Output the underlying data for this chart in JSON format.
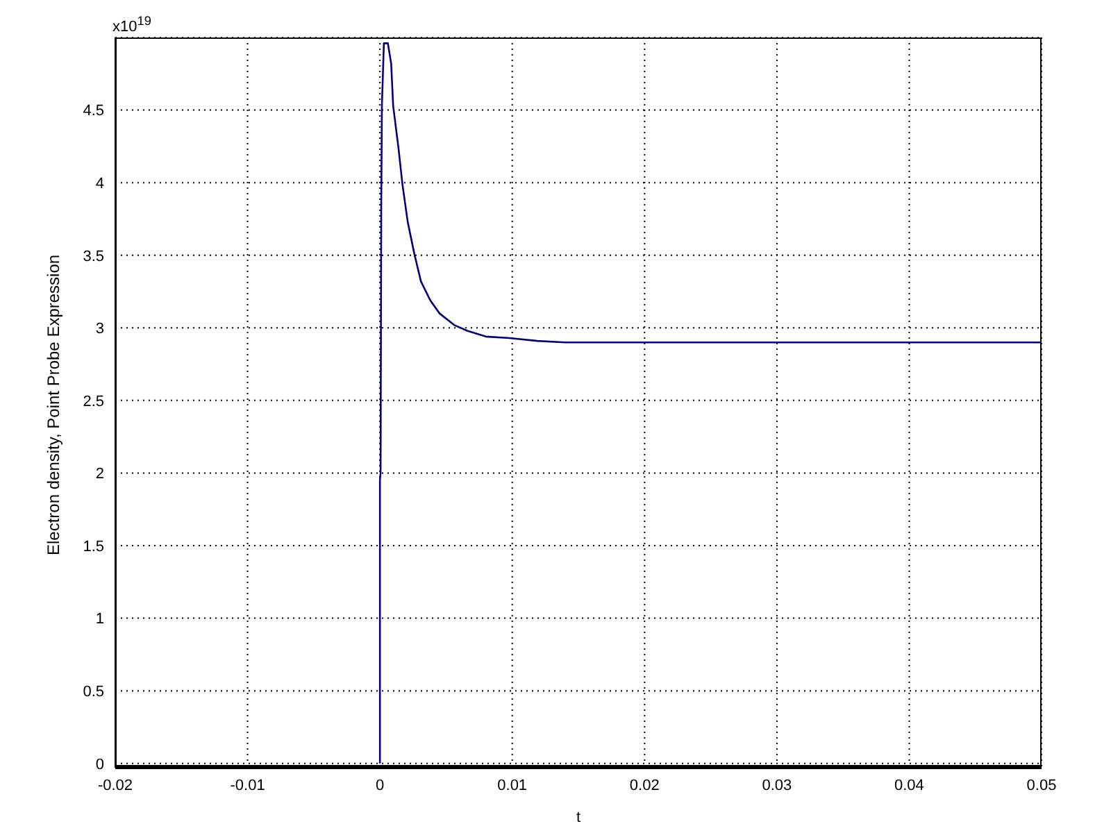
{
  "chart_data": {
    "type": "line",
    "xlabel": "t",
    "ylabel": "Electron density, Point Probe Expression",
    "annotations": [
      "x10$^{19}$"
    ],
    "series": [
      {
        "color": "#000080",
        "x": [
          0,
          0,
          5e-05,
          0.0001,
          0.00015,
          0.0003,
          0.0006,
          0.00085,
          0.001,
          0.0014,
          0.0017,
          0.0021,
          0.0026,
          0.0031,
          0.0038,
          0.0045,
          0.0056,
          0.0066,
          0.008,
          0.0098,
          0.0119,
          0.014,
          0.02,
          0.03,
          0.04,
          0.05
        ],
        "values": [
          0,
          1.95,
          2.0,
          3.85,
          4.53,
          4.96,
          4.96,
          4.82,
          4.53,
          4.24,
          3.99,
          3.73,
          3.51,
          3.32,
          3.19,
          3.1,
          3.02,
          2.98,
          2.94,
          2.93,
          2.91,
          2.9,
          2.9,
          2.9,
          2.9,
          2.9
        ]
      }
    ],
    "xlim": [
      -0.02,
      0.05
    ],
    "xticks": [
      -0.02,
      -0.01,
      0,
      0.01,
      0.02,
      0.03,
      0.04,
      0.05
    ],
    "ylim": [
      -0.03,
      5
    ],
    "yticks": [
      0,
      0.5,
      1,
      1.5,
      2,
      2.5,
      3,
      3.5,
      4,
      4.5
    ],
    "grid": true,
    "legend": false,
    "marker": "none",
    "line_style": "solid"
  }
}
